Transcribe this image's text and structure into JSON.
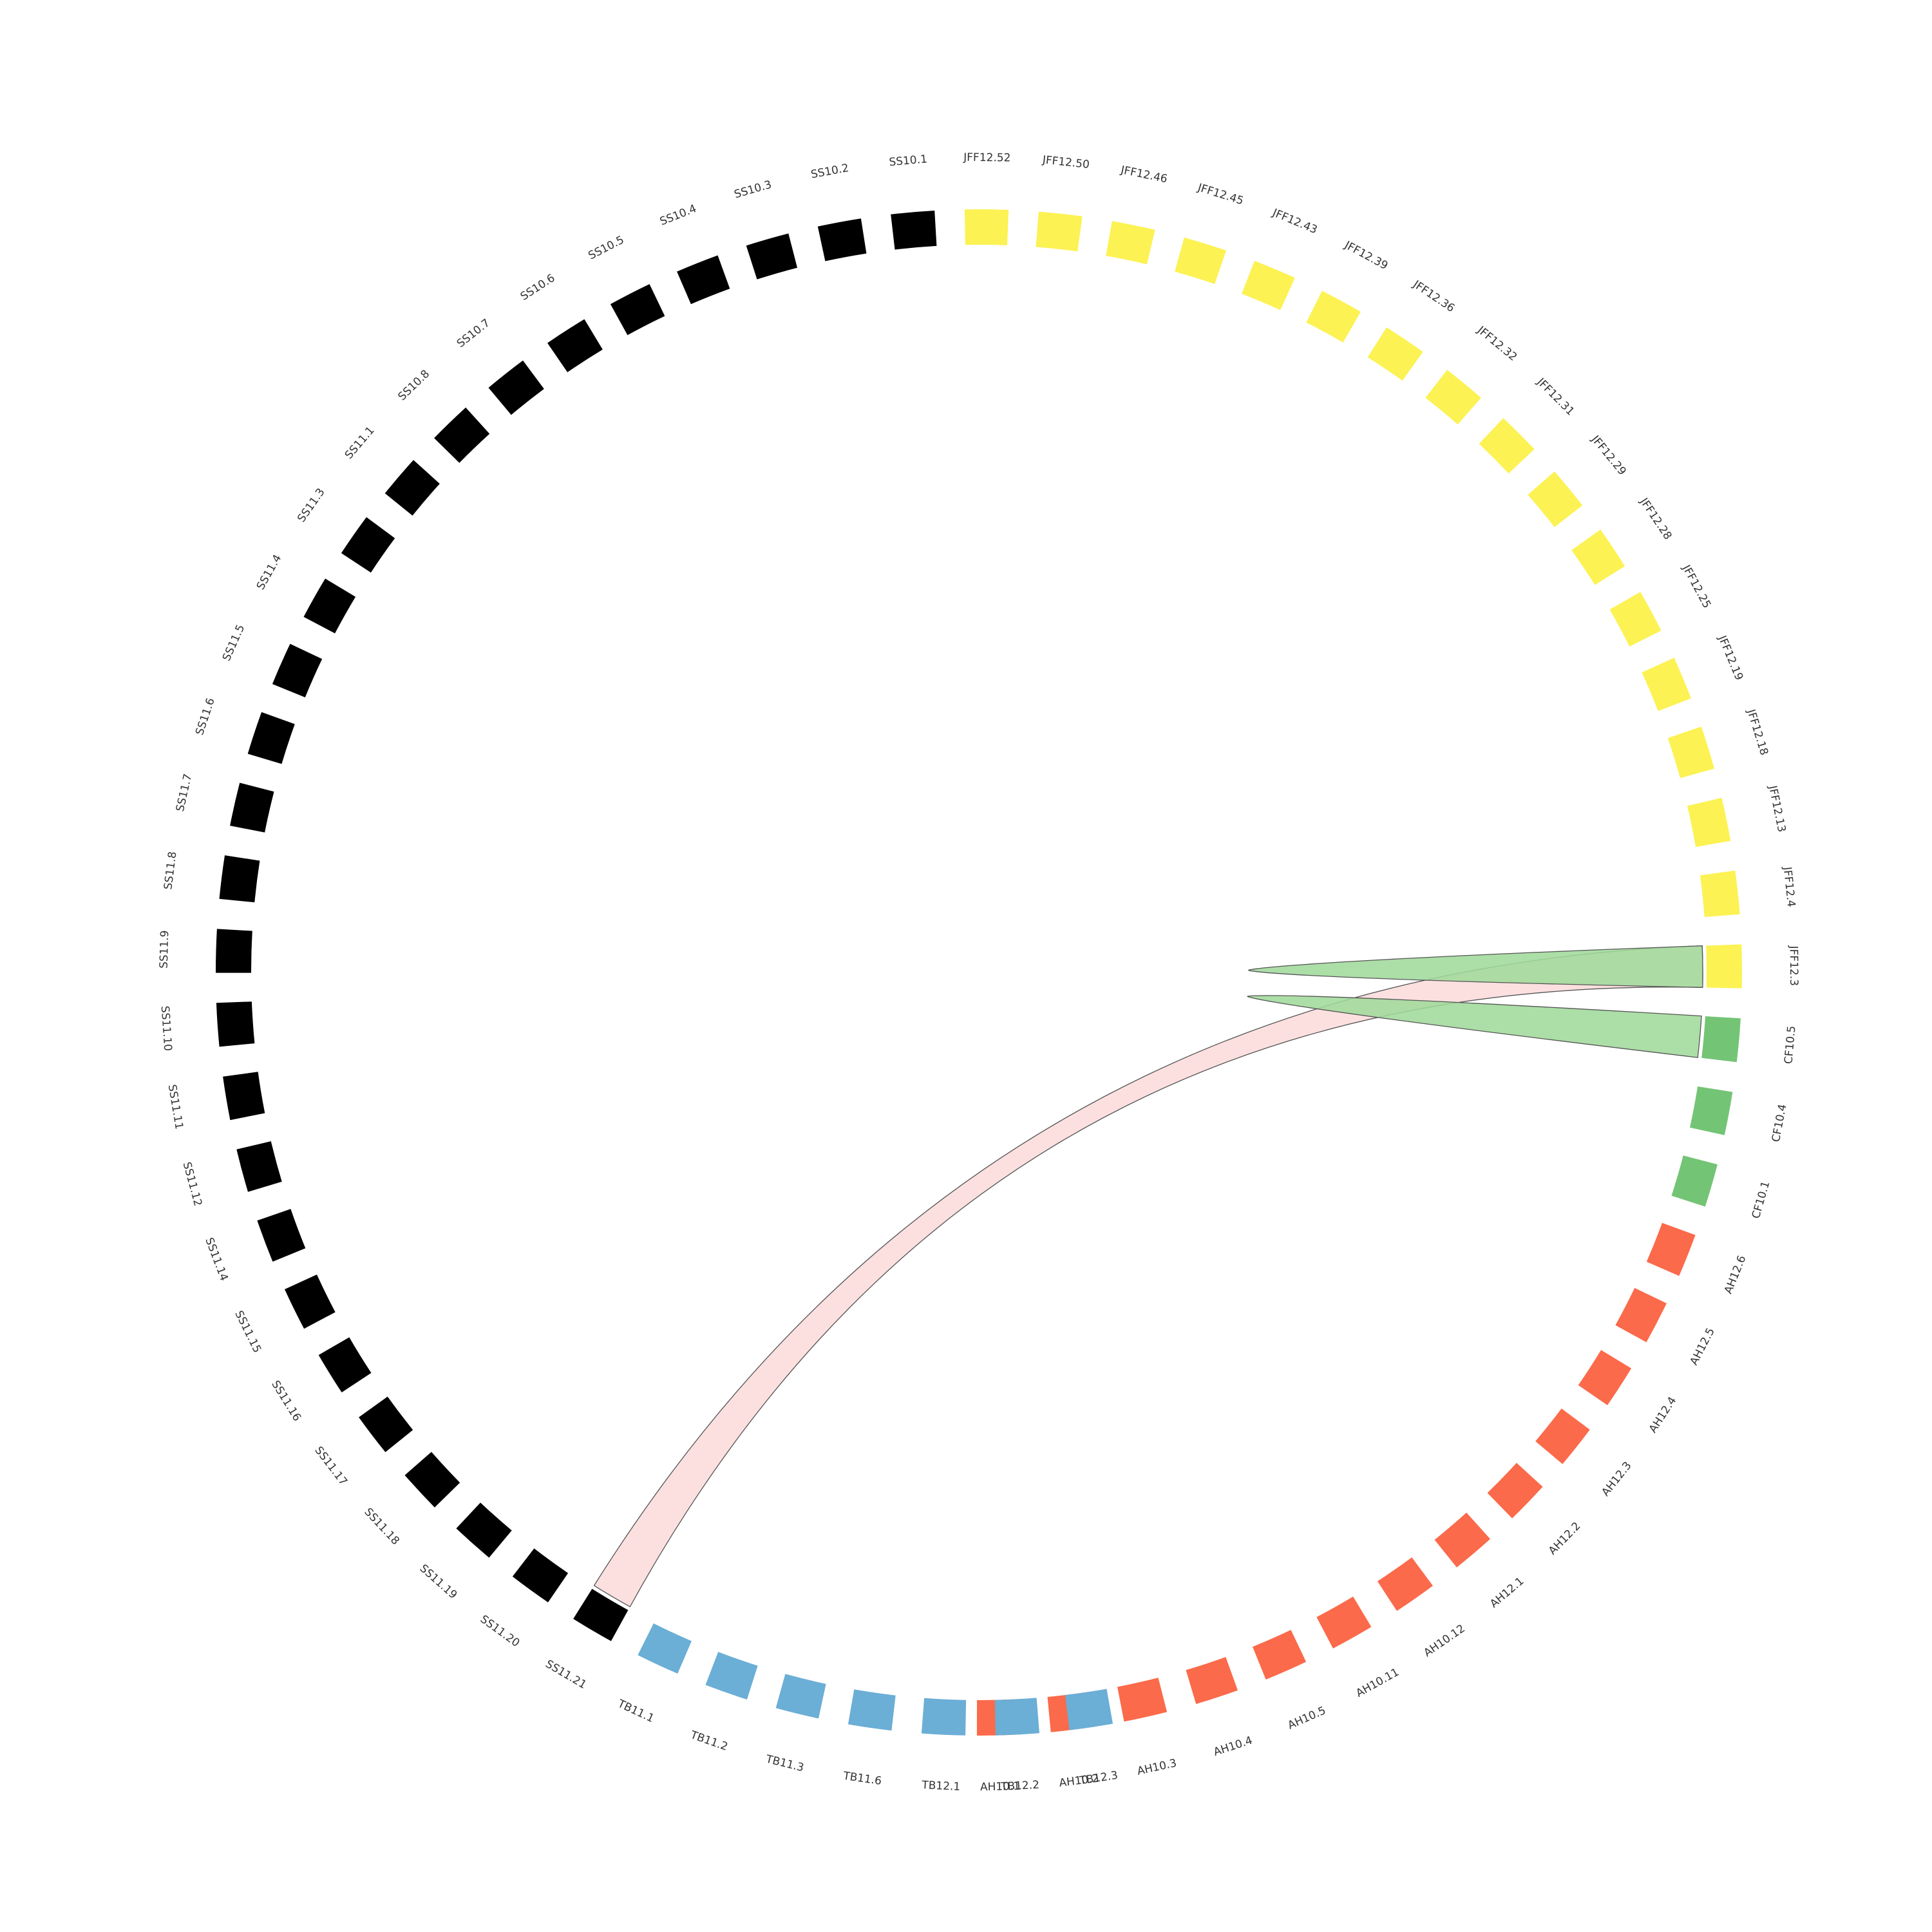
{
  "diagram": {
    "type": "chord",
    "groups": [
      {
        "name": "AH",
        "color": "#fb6a4a",
        "segments": [
          "AH10.1",
          "AH10.2",
          "AH10.3",
          "AH10.4",
          "AH10.5",
          "AH10.11",
          "AH10.12",
          "AH12.1",
          "AH12.2",
          "AH12.3",
          "AH12.4",
          "AH12.5",
          "AH12.6"
        ]
      },
      {
        "name": "CF",
        "color": "#74c476",
        "segments": [
          "CF10.1",
          "CF10.4",
          "CF10.5"
        ]
      },
      {
        "name": "JFF",
        "color": "#fcf253",
        "segments": [
          "JFF12.3",
          "JFF12.4",
          "JFF12.13",
          "JFF12.18",
          "JFF12.19",
          "JFF12.25",
          "JFF12.28",
          "JFF12.29",
          "JFF12.31",
          "JFF12.32",
          "JFF12.36",
          "JFF12.39",
          "JFF12.43",
          "JFF12.45",
          "JFF12.46",
          "JFF12.50",
          "JFF12.52"
        ]
      },
      {
        "name": "SS",
        "color": "#000000",
        "segments": [
          "SS10.1",
          "SS10.2",
          "SS10.3",
          "SS10.4",
          "SS10.5",
          "SS10.6",
          "SS10.7",
          "SS10.8",
          "SS11.1",
          "SS11.3",
          "SS11.4",
          "SS11.5",
          "SS11.6",
          "SS11.7",
          "SS11.8",
          "SS11.9",
          "SS11.10",
          "SS11.11",
          "SS11.12",
          "SS11.14",
          "SS11.15",
          "SS11.16",
          "SS11.17",
          "SS11.18",
          "SS11.19",
          "SS11.20",
          "SS11.21"
        ]
      },
      {
        "name": "TB",
        "color": "#6baed6",
        "segments": [
          "TB11.1",
          "TB11.2",
          "TB11.3",
          "TB11.6",
          "TB12.1",
          "TB12.2",
          "TB12.3"
        ]
      }
    ],
    "links": [
      {
        "source": "SS11.21",
        "target": "JFF12.3",
        "color": "#fcdcdc"
      },
      {
        "source": "CF10.5",
        "target": "CF10.5",
        "color": "#a1d99b"
      },
      {
        "source": "JFF12.3",
        "target": "JFF12.3",
        "color": "#a1d99b"
      }
    ]
  }
}
